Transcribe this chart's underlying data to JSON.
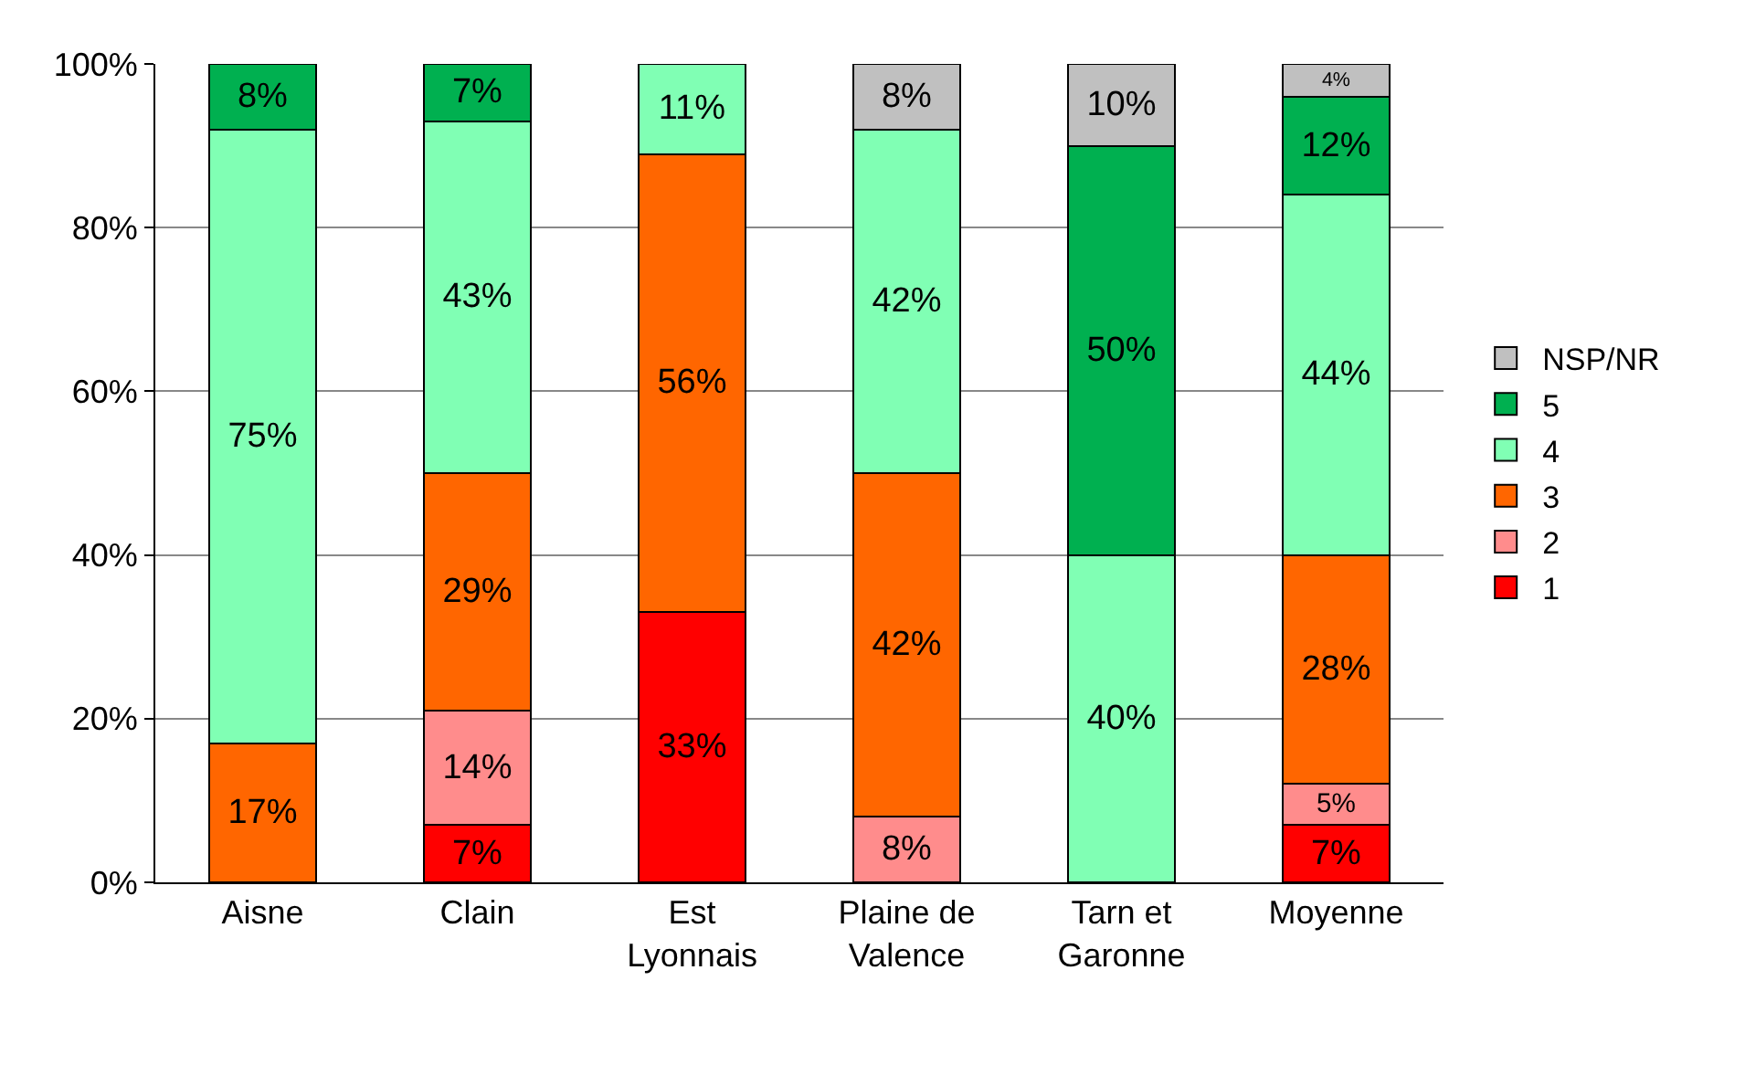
{
  "chart_data": {
    "type": "bar",
    "stacked": true,
    "categories": [
      "Aisne",
      "Clain",
      "Est Lyonnais",
      "Plaine de Valence",
      "Tarn et Garonne",
      "Moyenne"
    ],
    "series": [
      {
        "name": "1",
        "color": "#ff0000",
        "values": [
          null,
          7,
          33,
          null,
          null,
          7
        ],
        "value_labels": [
          null,
          "7%",
          "33%",
          null,
          null,
          "7%"
        ]
      },
      {
        "name": "2",
        "color": "#ff8c8c",
        "values": [
          null,
          14,
          null,
          8,
          null,
          5
        ],
        "value_labels": [
          null,
          "14%",
          null,
          "8%",
          null,
          "5%"
        ]
      },
      {
        "name": "3",
        "color": "#ff6600",
        "values": [
          17,
          29,
          56,
          42,
          null,
          28
        ],
        "value_labels": [
          "17%",
          "29%",
          "56%",
          "42%",
          null,
          "28%"
        ]
      },
      {
        "name": "4",
        "color": "#80ffb4",
        "values": [
          75,
          43,
          11,
          42,
          40,
          44
        ],
        "value_labels": [
          "75%",
          "43%",
          "11%",
          "42%",
          "40%",
          "44%"
        ]
      },
      {
        "name": "5",
        "color": "#00b050",
        "values": [
          8,
          7,
          null,
          null,
          50,
          12
        ],
        "value_labels": [
          "8%",
          "7%",
          null,
          null,
          "50%",
          "12%"
        ]
      },
      {
        "name": "NSP/NR",
        "color": "#c0c0c0",
        "values": [
          null,
          null,
          null,
          8,
          10,
          4
        ],
        "value_labels": [
          null,
          null,
          null,
          "8%",
          "10%",
          "4%"
        ]
      }
    ],
    "ylim": [
      0,
      100
    ],
    "yticks": [
      {
        "value": 0,
        "label": "0%"
      },
      {
        "value": 20,
        "label": "20%"
      },
      {
        "value": 40,
        "label": "40%"
      },
      {
        "value": 60,
        "label": "60%"
      },
      {
        "value": 80,
        "label": "80%"
      },
      {
        "value": 100,
        "label": "100%"
      }
    ],
    "grid": "y",
    "legend": "right"
  }
}
